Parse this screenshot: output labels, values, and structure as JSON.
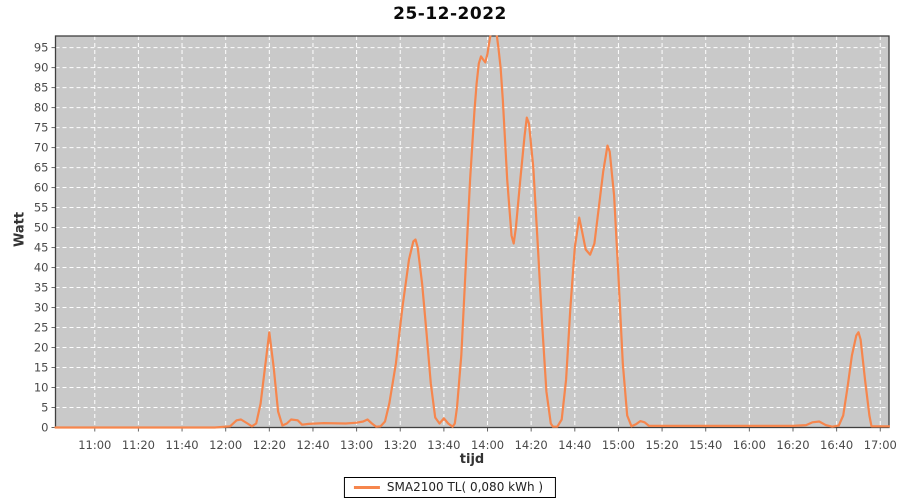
{
  "window": {
    "title": "25-12-2022"
  },
  "colors": {
    "page_bg": "#ffffff",
    "plot_bg": "#c9c9c9",
    "grid": "#ffffff",
    "frame": "#3f3f3f",
    "tick": "#666666",
    "tick_label": "#4a4a4a",
    "series_line": "#f6864d",
    "title_text": "#0a0a0a"
  },
  "legend": {
    "label": "SMA2100 TL( 0,080 kWh )"
  },
  "chart_data": {
    "type": "line",
    "title": "25-12-2022",
    "xlabel": "tijd",
    "ylabel": "Watt",
    "grid": true,
    "legend_position": "bottom-center",
    "x_window": [
      "10:42",
      "17:04"
    ],
    "x_ticks": [
      "11:00",
      "11:20",
      "11:40",
      "12:00",
      "12:20",
      "12:40",
      "13:00",
      "13:20",
      "13:40",
      "14:00",
      "14:20",
      "14:40",
      "15:00",
      "15:20",
      "15:40",
      "16:00",
      "16:20",
      "16:40",
      "17:00"
    ],
    "y_tick_min": 0,
    "y_tick_max": 95,
    "y_tick_step": 5,
    "ylim": [
      0,
      97.9
    ],
    "series": [
      {
        "name": "SMA2100 TL( 0,080 kWh )",
        "color": "#f6864d",
        "points": [
          [
            "10:42",
            0
          ],
          [
            "11:30",
            0
          ],
          [
            "11:55",
            0
          ],
          [
            "12:02",
            0.3
          ],
          [
            "12:05",
            1.8
          ],
          [
            "12:07",
            2
          ],
          [
            "12:10",
            1
          ],
          [
            "12:12",
            0.3
          ],
          [
            "12:14",
            1
          ],
          [
            "12:16",
            6
          ],
          [
            "12:18",
            15
          ],
          [
            "12:20",
            23.8
          ],
          [
            "12:22",
            15
          ],
          [
            "12:24",
            4
          ],
          [
            "12:26",
            0.5
          ],
          [
            "12:28",
            1
          ],
          [
            "12:30",
            2
          ],
          [
            "12:33",
            1.8
          ],
          [
            "12:35",
            0.7
          ],
          [
            "12:38",
            0.9
          ],
          [
            "12:45",
            1.1
          ],
          [
            "12:55",
            1.0
          ],
          [
            "13:00",
            1.2
          ],
          [
            "13:03",
            1.5
          ],
          [
            "13:05",
            2
          ],
          [
            "13:07",
            1
          ],
          [
            "13:09",
            0.2
          ],
          [
            "13:11",
            0.3
          ],
          [
            "13:13",
            1.5
          ],
          [
            "13:15",
            6
          ],
          [
            "13:18",
            16
          ],
          [
            "13:21",
            30
          ],
          [
            "13:24",
            42
          ],
          [
            "13:26",
            46.5
          ],
          [
            "13:27",
            47
          ],
          [
            "13:28",
            45
          ],
          [
            "13:30",
            36
          ],
          [
            "13:32",
            24
          ],
          [
            "13:34",
            11
          ],
          [
            "13:36",
            2.5
          ],
          [
            "13:38",
            1
          ],
          [
            "13:40",
            2.3
          ],
          [
            "13:42",
            1
          ],
          [
            "13:44",
            0.2
          ],
          [
            "13:45",
            1
          ],
          [
            "13:46",
            5
          ],
          [
            "13:48",
            18
          ],
          [
            "13:50",
            40
          ],
          [
            "13:52",
            62
          ],
          [
            "13:54",
            79
          ],
          [
            "13:55",
            86
          ],
          [
            "13:56",
            91
          ],
          [
            "13:57",
            92.8
          ],
          [
            "13:58",
            92
          ],
          [
            "13:59",
            91.3
          ],
          [
            "14:00",
            93.5
          ],
          [
            "14:01",
            97
          ],
          [
            "14:02",
            100
          ],
          [
            "14:04",
            99
          ],
          [
            "14:05",
            95
          ],
          [
            "14:06",
            90
          ],
          [
            "14:07",
            82
          ],
          [
            "14:09",
            62
          ],
          [
            "14:11",
            48
          ],
          [
            "14:12",
            46
          ],
          [
            "14:13",
            50
          ],
          [
            "14:15",
            62
          ],
          [
            "14:17",
            73
          ],
          [
            "14:18",
            77.5
          ],
          [
            "14:19",
            76
          ],
          [
            "14:21",
            65
          ],
          [
            "14:23",
            46
          ],
          [
            "14:25",
            26
          ],
          [
            "14:27",
            9
          ],
          [
            "14:29",
            1
          ],
          [
            "14:30",
            0.2
          ],
          [
            "14:32",
            0.2
          ],
          [
            "14:34",
            2
          ],
          [
            "14:36",
            12
          ],
          [
            "14:38",
            30
          ],
          [
            "14:40",
            45
          ],
          [
            "14:42",
            52.5
          ],
          [
            "14:43",
            50
          ],
          [
            "14:45",
            44.5
          ],
          [
            "14:47",
            43.2
          ],
          [
            "14:49",
            46
          ],
          [
            "14:51",
            55
          ],
          [
            "14:53",
            64
          ],
          [
            "14:55",
            70.5
          ],
          [
            "14:56",
            69
          ],
          [
            "14:58",
            58
          ],
          [
            "15:00",
            38
          ],
          [
            "15:02",
            16
          ],
          [
            "15:04",
            3
          ],
          [
            "15:06",
            0.3
          ],
          [
            "15:08",
            0.8
          ],
          [
            "15:10",
            1.6
          ],
          [
            "15:12",
            1.3
          ],
          [
            "15:14",
            0.4
          ],
          [
            "15:20",
            0.4
          ],
          [
            "15:40",
            0.4
          ],
          [
            "16:00",
            0.4
          ],
          [
            "16:20",
            0.4
          ],
          [
            "16:26",
            0.6
          ],
          [
            "16:29",
            1.3
          ],
          [
            "16:32",
            1.5
          ],
          [
            "16:35",
            0.6
          ],
          [
            "16:38",
            0.2
          ],
          [
            "16:41",
            0.5
          ],
          [
            "16:43",
            3
          ],
          [
            "16:45",
            10
          ],
          [
            "16:47",
            18
          ],
          [
            "16:49",
            23
          ],
          [
            "16:50",
            23.8
          ],
          [
            "16:51",
            22
          ],
          [
            "16:53",
            12
          ],
          [
            "16:55",
            3
          ],
          [
            "16:56",
            0.3
          ],
          [
            "17:04",
            0.3
          ]
        ]
      }
    ]
  }
}
